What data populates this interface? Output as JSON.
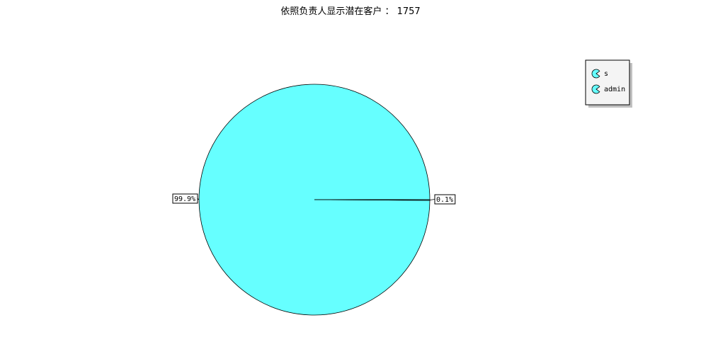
{
  "chart_data": {
    "type": "pie",
    "title": "依照负责人显示潜在客户 ： 1757",
    "slices": [
      {
        "label": "s",
        "value": 99.9,
        "percent_label": "99.9%",
        "color": "#66ffff"
      },
      {
        "label": "admin",
        "value": 0.1,
        "percent_label": "0.1%",
        "color": "#66ffff"
      }
    ],
    "legend_position": "top-right"
  }
}
